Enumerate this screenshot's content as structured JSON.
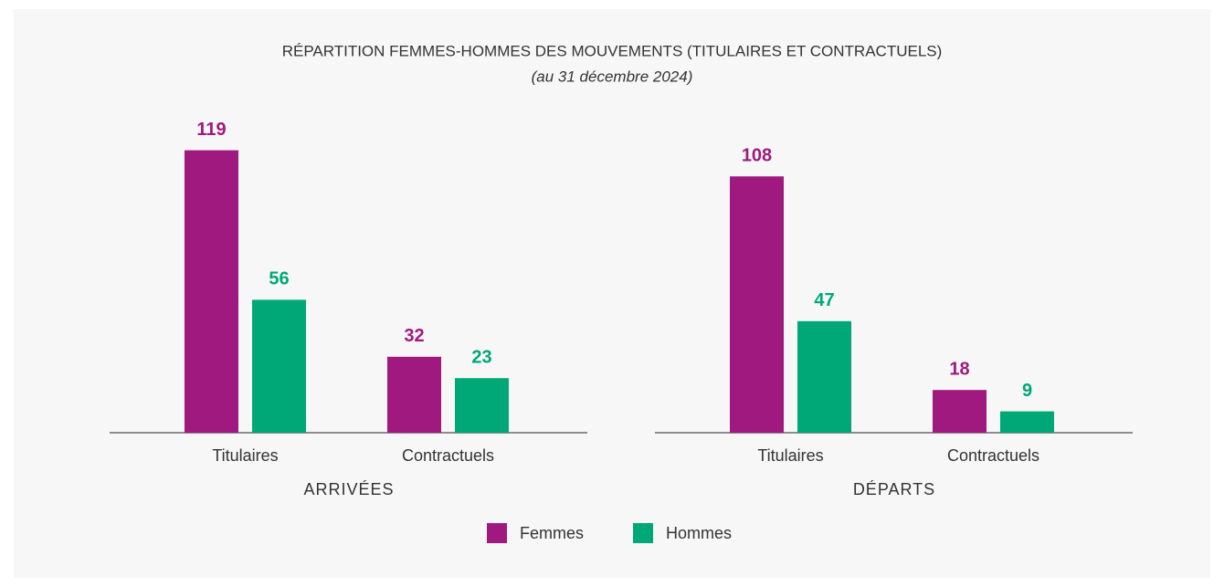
{
  "title": "RÉPARTITION FEMMES-HOMMES DES MOUVEMENTS (TITULAIRES ET CONTRACTUELS)",
  "subtitle": "(au 31 décembre 2024)",
  "chart_data": [
    {
      "type": "bar",
      "xlabel": "ARRIVÉES",
      "categories": [
        "Titulaires",
        "Contractuels"
      ],
      "series": [
        {
          "name": "Femmes",
          "color": "#a0197f",
          "values": [
            119,
            32
          ]
        },
        {
          "name": "Hommes",
          "color": "#00a878",
          "values": [
            56,
            23
          ]
        }
      ]
    },
    {
      "type": "bar",
      "xlabel": "DÉPARTS",
      "categories": [
        "Titulaires",
        "Contractuels"
      ],
      "series": [
        {
          "name": "Femmes",
          "color": "#a0197f",
          "values": [
            108,
            18
          ]
        },
        {
          "name": "Hommes",
          "color": "#00a878",
          "values": [
            47,
            9
          ]
        }
      ]
    }
  ]
}
